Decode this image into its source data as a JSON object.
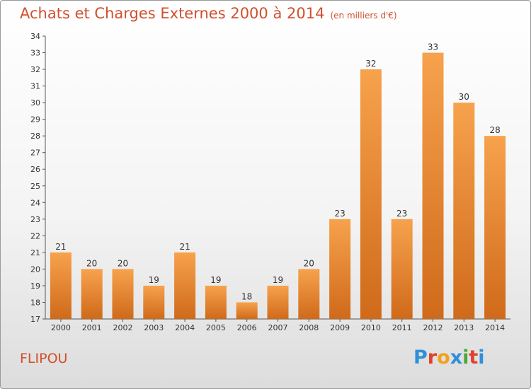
{
  "header": {
    "title": "Achats et Charges Externes 2000 à 2014",
    "unit": "(en milliers d'€)"
  },
  "commune": "FLIPOU",
  "logo": {
    "letters": [
      "P",
      "r",
      "o",
      "x",
      "i",
      "t",
      "i"
    ],
    "colors": [
      "#2f8fd8",
      "#e3402e",
      "#f0a21a",
      "#2f8fd8",
      "#49a83a",
      "#e3402e",
      "#2f8fd8"
    ]
  },
  "colors": {
    "bar_light": "#f7a24d",
    "bar_dark": "#cf6a1a",
    "title": "#d0502e"
  },
  "chart_data": {
    "type": "bar",
    "title": "Achats et Charges Externes 2000 à 2014",
    "subtitle": "(en milliers d'€)",
    "xlabel": "",
    "ylabel": "",
    "categories": [
      "2000",
      "2001",
      "2002",
      "2003",
      "2004",
      "2005",
      "2006",
      "2007",
      "2008",
      "2009",
      "2010",
      "2011",
      "2012",
      "2013",
      "2014"
    ],
    "values": [
      21,
      20,
      20,
      19,
      21,
      19,
      18,
      19,
      20,
      23,
      32,
      23,
      33,
      30,
      28
    ],
    "ylim": [
      17,
      34
    ],
    "yticks": [
      17,
      18,
      19,
      20,
      21,
      22,
      23,
      24,
      25,
      26,
      27,
      28,
      29,
      30,
      31,
      32,
      33,
      34
    ],
    "grid": false,
    "legend": "none"
  }
}
